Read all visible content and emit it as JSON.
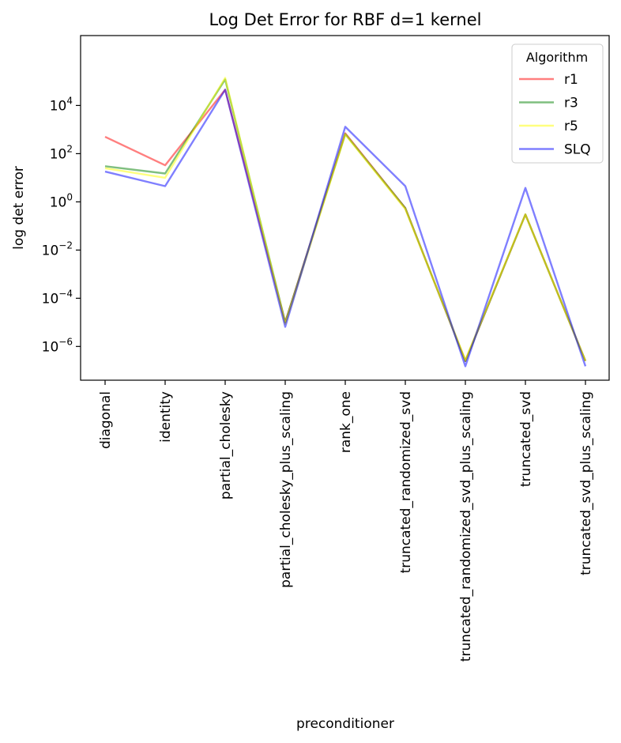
{
  "chart_data": {
    "type": "line",
    "title": "Log Det Error for RBF d=1 kernel",
    "xlabel": "preconditioner",
    "ylabel": "log det error",
    "yscale": "log",
    "ylim_exponents": [
      -7.4,
      6.9
    ],
    "y_tick_exponents": [
      -6,
      -4,
      -2,
      0,
      2,
      4
    ],
    "y_tick_labels": [
      "-6",
      "-4",
      "-2",
      "0",
      "2",
      "4"
    ],
    "categories": [
      "diagonal",
      "identity",
      "partial_cholesky",
      "partial_cholesky_plus_scaling",
      "rank_one",
      "truncated_randomized_svd",
      "truncated_randomized_svd_plus_scaling",
      "truncated_svd",
      "truncated_svd_plus_scaling"
    ],
    "legend_title": "Algorithm",
    "legend_location": "top-right",
    "series": [
      {
        "name": "r1",
        "color": "#ff0000",
        "values": [
          500,
          33,
          45000,
          1e-05,
          700,
          0.55,
          2.5e-07,
          0.3,
          2.5e-07
        ]
      },
      {
        "name": "r3",
        "color": "#008000",
        "values": [
          30,
          15,
          120000,
          1e-05,
          650,
          0.55,
          2.5e-07,
          0.3,
          2.5e-07
        ]
      },
      {
        "name": "r5",
        "color": "#ffff00",
        "values": [
          25,
          10,
          140000,
          8.5e-06,
          620,
          0.5,
          2.8e-07,
          0.3,
          2.5e-07
        ]
      },
      {
        "name": "SLQ",
        "color": "#0000ff",
        "values": [
          18,
          4.5,
          45000,
          6.5e-06,
          1300,
          4.5,
          1.5e-07,
          3.8,
          1.5e-07
        ]
      }
    ]
  }
}
